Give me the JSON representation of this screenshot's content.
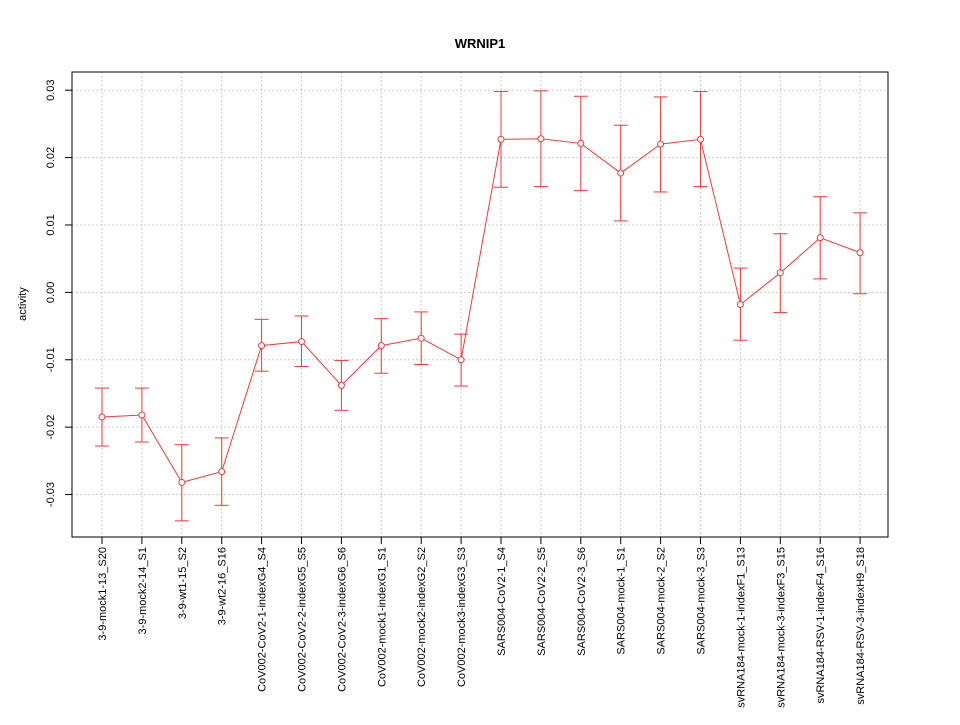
{
  "chart_data": {
    "type": "line",
    "title": "WRNIP1",
    "xlabel": "",
    "ylabel": "activity",
    "ylim": [
      -0.0363,
      0.0327
    ],
    "y_ticks": [
      -0.03,
      -0.02,
      -0.01,
      0.0,
      0.01,
      0.02,
      0.03
    ],
    "y_tick_labels": [
      "-0.03",
      "-0.02",
      "-0.01",
      "0.00",
      "0.01",
      "0.02",
      "0.03"
    ],
    "grid": true,
    "colors": {
      "series": "#ee3b3b",
      "grid": "#cccccc",
      "axis": "#000000"
    },
    "categories": [
      "3-9-mock1-13_S20",
      "3-9-mock2-14_S1",
      "3-9-wt1-15_S2",
      "3-9-wt2-16_S16",
      "CoV002-CoV2-1-indexG4_S4",
      "CoV002-CoV2-2-indexG5_S5",
      "CoV002-CoV2-3-indexG6_S6",
      "CoV002-mock1-indexG1_S1",
      "CoV002-mock2-indexG2_S2",
      "CoV002-mock3-indexG3_S3",
      "SARS004-CoV2-1_S4",
      "SARS004-CoV2-2_S5",
      "SARS004-CoV2-3_S6",
      "SARS004-mock-1_S1",
      "SARS004-mock-2_S2",
      "SARS004-mock-3_S3",
      "svRNA184-mock-1-indexF1_S13",
      "svRNA184-mock-3-indexF3_S15",
      "svRNA184-RSV-1-indexF4_S16",
      "svRNA184-RSV-3-indexH9_S18"
    ],
    "series": [
      {
        "values": [
          -0.0185,
          -0.0182,
          -0.0282,
          -0.0266,
          -0.0079,
          -0.0073,
          -0.0138,
          -0.0079,
          -0.0068,
          -0.01,
          0.0227,
          0.0228,
          0.0221,
          0.0177,
          0.022,
          0.0227,
          -0.0018,
          0.0029,
          0.0081,
          0.0059
        ],
        "lower": [
          -0.0228,
          -0.0222,
          -0.0339,
          -0.0316,
          -0.0117,
          -0.011,
          -0.0175,
          -0.012,
          -0.0107,
          -0.0139,
          0.0156,
          0.0157,
          0.0151,
          0.0106,
          0.0149,
          0.0157,
          -0.0071,
          -0.003,
          0.002,
          -0.0002
        ],
        "upper": [
          -0.0142,
          -0.0142,
          -0.0226,
          -0.0216,
          -0.004,
          -0.0035,
          -0.0101,
          -0.0039,
          -0.0029,
          -0.0062,
          0.0298,
          0.0299,
          0.0291,
          0.0248,
          0.029,
          0.0298,
          0.0036,
          0.0087,
          0.0142,
          0.0118
        ]
      }
    ]
  }
}
